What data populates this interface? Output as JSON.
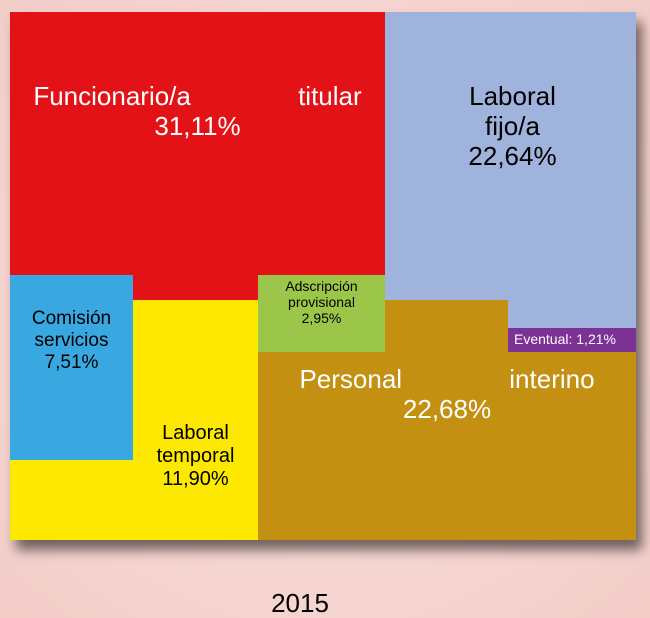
{
  "chart_data": {
    "type": "treemap",
    "title": "2015",
    "categories": [
      "Funcionario/a titular",
      "Laboral fijo/a",
      "Comisión servicios",
      "Laboral temporal",
      "Adscripción provisional",
      "Personal interino",
      "Eventual:"
    ],
    "values": [
      31.11,
      22.64,
      7.51,
      11.9,
      2.95,
      22.68,
      1.21
    ],
    "value_labels": [
      "31,11%",
      "22,64%",
      "7,51%",
      "11,90%",
      "2,95%",
      "22,68%",
      "1,21%"
    ],
    "colors": [
      "#e31217",
      "#9fb3dd",
      "#3aa8e0",
      "#fce800",
      "#9cc64a",
      "#c49012",
      "#7b3294"
    ]
  }
}
